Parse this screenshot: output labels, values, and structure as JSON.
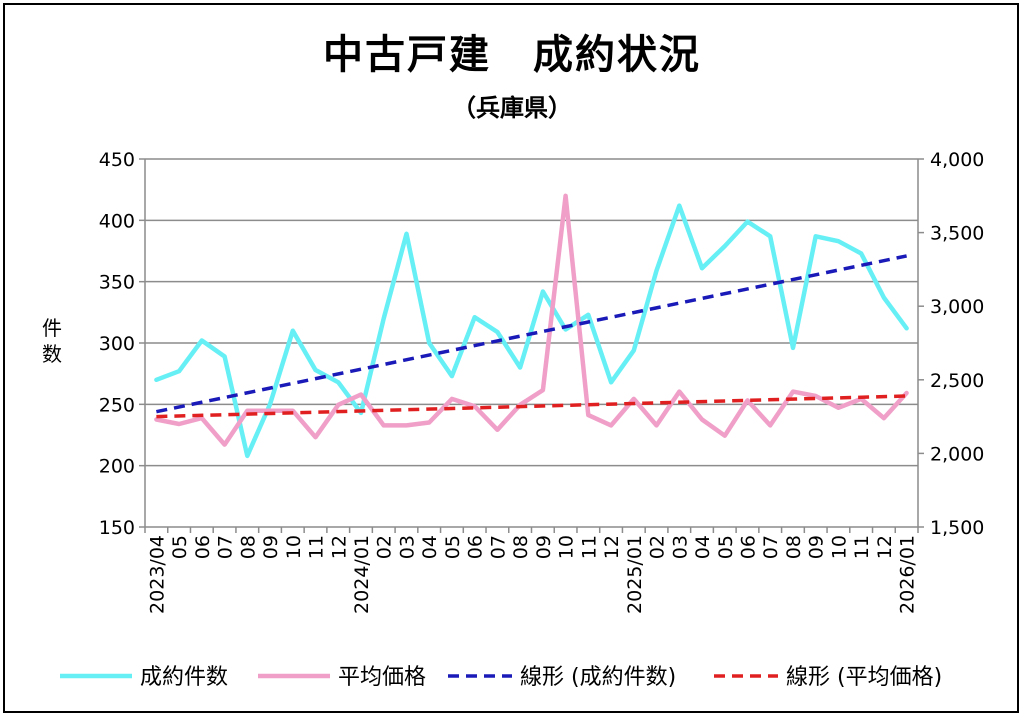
{
  "chart_data": {
    "type": "line",
    "title": "中古戸建　成約状況",
    "subtitle": "（兵庫県）",
    "ylabel_left": "件数",
    "ylim_left": [
      150,
      450
    ],
    "yticks_left": [
      "150",
      "200",
      "250",
      "300",
      "350",
      "400",
      "450"
    ],
    "ylim_right": [
      1500,
      4000
    ],
    "yticks_right": [
      "1,500",
      "2,000",
      "2,500",
      "3,000",
      "3,500",
      "4,000"
    ],
    "x_labels": [
      "2023/04",
      "05",
      "06",
      "07",
      "08",
      "09",
      "10",
      "11",
      "12",
      "2024/01",
      "02",
      "03",
      "04",
      "05",
      "06",
      "07",
      "08",
      "09",
      "10",
      "11",
      "12",
      "2025/01",
      "02",
      "03",
      "04",
      "05",
      "06",
      "07",
      "08",
      "09",
      "10",
      "11",
      "12",
      "2026/01"
    ],
    "grid": true,
    "legend_position": "bottom",
    "series": [
      {
        "name": "成約件数",
        "axis": "left",
        "color": "#66f0f5",
        "style": "solid",
        "values": [
          270,
          277,
          302,
          289,
          208,
          250,
          310,
          278,
          268,
          243,
          320,
          389,
          300,
          273,
          321,
          309,
          280,
          342,
          311,
          323,
          268,
          294,
          359,
          412,
          361,
          379,
          399,
          387,
          296,
          387,
          383,
          373,
          337,
          312
        ]
      },
      {
        "name": "平均価格",
        "axis": "right",
        "color": "#f0a0c8",
        "style": "solid",
        "values": [
          2230,
          2200,
          2240,
          2060,
          2290,
          2290,
          2290,
          2110,
          2330,
          2400,
          2190,
          2190,
          2210,
          2370,
          2320,
          2160,
          2330,
          2430,
          3750,
          2260,
          2190,
          2370,
          2190,
          2420,
          2230,
          2120,
          2360,
          2190,
          2420,
          2390,
          2310,
          2370,
          2240,
          2410
        ]
      },
      {
        "name": "線形 (成約件数)",
        "axis": "left",
        "color": "#1a1ab8",
        "style": "dashed",
        "trend_start": 244,
        "trend_end": 371
      },
      {
        "name": "線形 (平均価格)",
        "axis": "right",
        "color": "#e02020",
        "style": "dashed",
        "trend_start": 2250,
        "trend_end": 2390
      }
    ]
  }
}
